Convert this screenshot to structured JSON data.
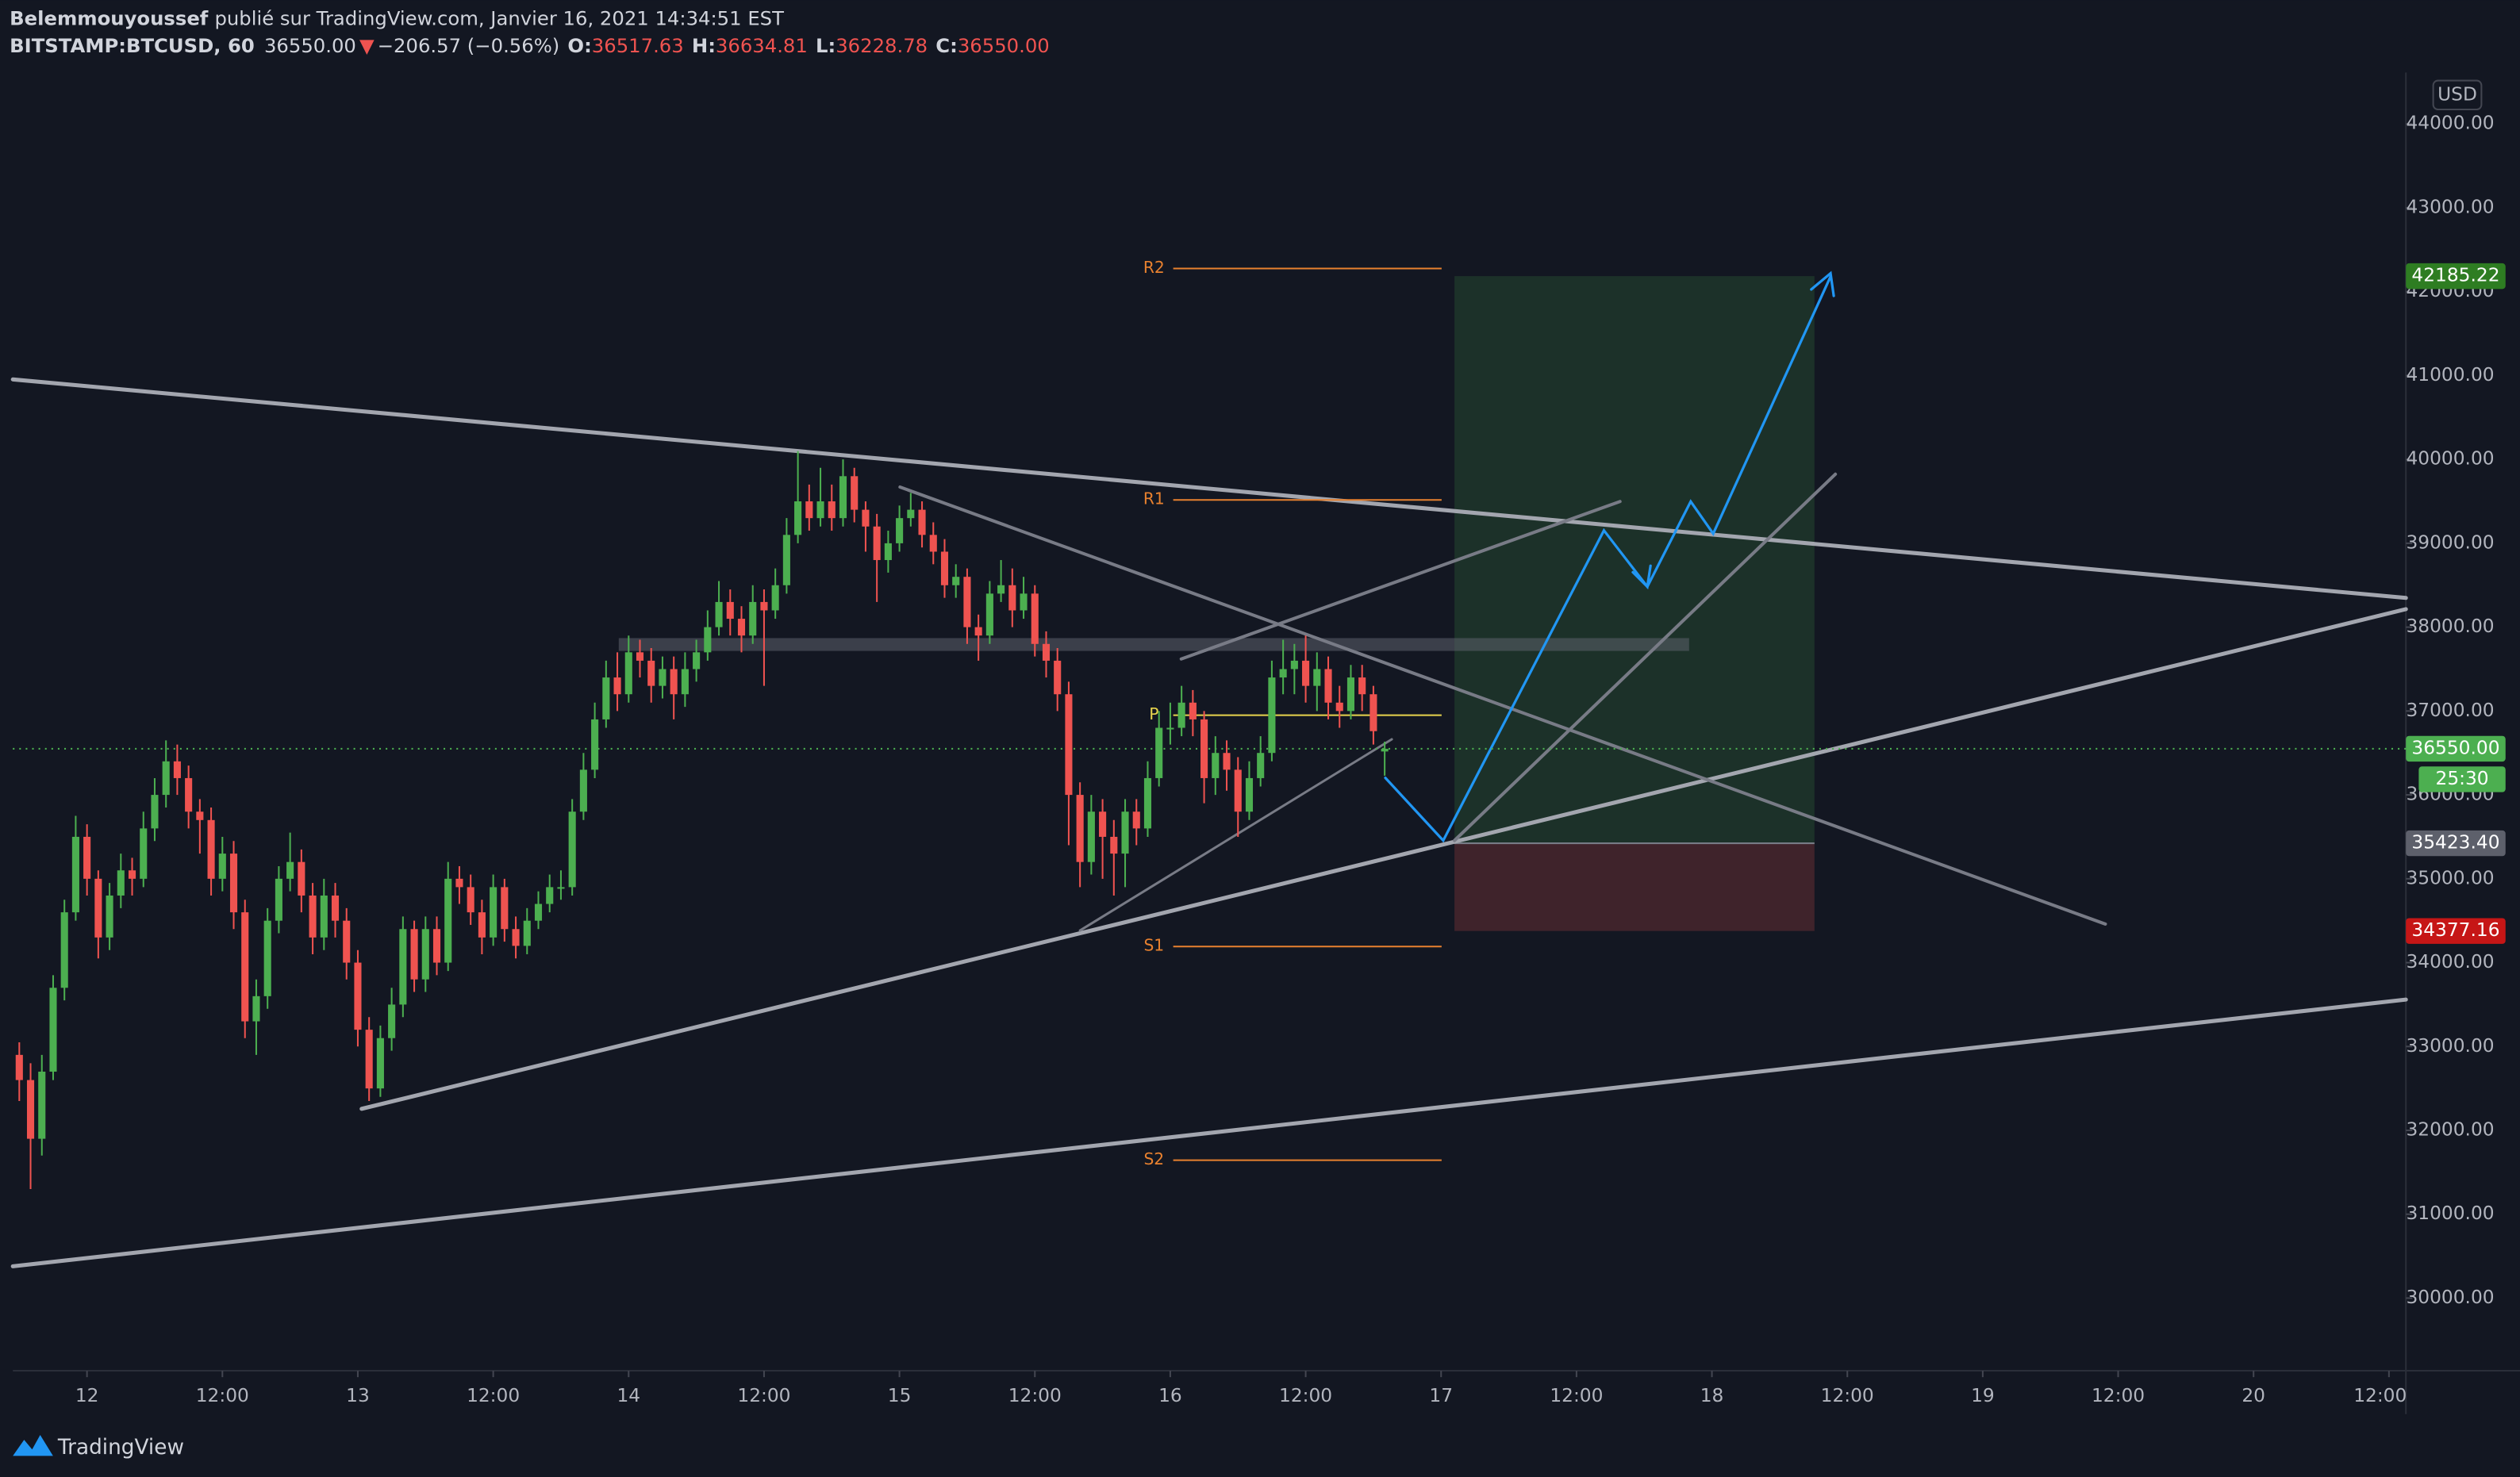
{
  "header": {
    "author": "Belemmouyoussef",
    "published": "publié sur TradingView.com, Janvier 16, 2021 14:34:51 EST",
    "symbol": "BITSTAMP:BTCUSD, 60",
    "price": "36550.00",
    "arrow": "▼",
    "change": "−206.57 (−0.56%)",
    "ohlc": [
      {
        "label": "O:",
        "value": "36517.63"
      },
      {
        "label": "H:",
        "value": "36634.81"
      },
      {
        "label": "L:",
        "value": "36228.78"
      },
      {
        "label": "C:",
        "value": "36550.00"
      }
    ]
  },
  "chart_data": {
    "type": "candlestick",
    "currency": "USD",
    "up_color": "#4caf50",
    "down_color": "#ef5350",
    "grid": false,
    "open": [
      32900,
      32600,
      31900,
      32700,
      33700,
      34600,
      35500,
      35000,
      34300,
      34800,
      35100,
      35000,
      35600,
      36000,
      36400,
      36200,
      35800,
      35700,
      35000,
      35300,
      34600,
      33300,
      33600,
      34500,
      35000,
      35200,
      34800,
      34300,
      34800,
      34500,
      34000,
      33200,
      32500,
      33100,
      33500,
      34400,
      33800,
      34400,
      34000,
      35000,
      34900,
      34600,
      34300,
      34900,
      34400,
      34200,
      34500,
      34700,
      34900,
      34900,
      35800,
      36300,
      36900,
      37400,
      37200,
      37700,
      37600,
      37300,
      37500,
      37200,
      37500,
      37700,
      38000,
      38300,
      38100,
      37900,
      38300,
      38200,
      38500,
      39100,
      39500,
      39300,
      39500,
      39300,
      39800,
      39400,
      39200,
      38800,
      39000,
      39300,
      39400,
      39100,
      38900,
      38500,
      38600,
      38000,
      37900,
      38400,
      38500,
      38200,
      38400,
      37800,
      37600,
      37200,
      36000,
      35200,
      35800,
      35500,
      35300,
      35800,
      35600,
      36200,
      36800,
      36800,
      37100,
      36900,
      36200,
      36500,
      36300,
      35800,
      36200,
      36500,
      37400,
      37500,
      37600,
      37300,
      37500,
      37100,
      37000,
      37400,
      37200,
      36517.63
    ],
    "high": [
      33050,
      32800,
      32900,
      33850,
      34750,
      35750,
      35650,
      35100,
      34950,
      35300,
      35250,
      35800,
      36200,
      36650,
      36600,
      36350,
      35950,
      35850,
      35500,
      35450,
      34750,
      33800,
      34650,
      35150,
      35550,
      35350,
      34950,
      35000,
      34950,
      34650,
      34150,
      33350,
      33250,
      33700,
      34550,
      34500,
      34550,
      34550,
      35200,
      35150,
      35050,
      34750,
      35050,
      35000,
      34550,
      34650,
      34850,
      35050,
      35100,
      35950,
      36500,
      37100,
      37600,
      37700,
      37900,
      37850,
      37750,
      37650,
      37650,
      37700,
      37850,
      38200,
      38550,
      38450,
      38250,
      38500,
      38450,
      38700,
      39300,
      40100,
      39700,
      39900,
      39700,
      40000,
      39900,
      39500,
      39350,
      39150,
      39450,
      39600,
      39500,
      39250,
      39050,
      38750,
      38700,
      38150,
      38550,
      38800,
      38700,
      38600,
      38500,
      37950,
      37750,
      37350,
      36150,
      36000,
      35950,
      35700,
      35950,
      35950,
      36400,
      37000,
      37100,
      37300,
      37250,
      37000,
      36700,
      36650,
      36450,
      36400,
      36700,
      37600,
      37850,
      37800,
      37900,
      37700,
      37650,
      37300,
      37550,
      37550,
      37300,
      36634.81
    ],
    "low": [
      32350,
      31300,
      31700,
      32600,
      33550,
      34500,
      34800,
      34050,
      34150,
      34650,
      34800,
      34900,
      35450,
      35850,
      36000,
      35600,
      35300,
      34800,
      34850,
      34400,
      33100,
      32900,
      33450,
      34350,
      34850,
      34600,
      34100,
      34150,
      34300,
      33800,
      33000,
      32350,
      32400,
      32950,
      33350,
      33650,
      33650,
      33850,
      33900,
      34700,
      34450,
      34100,
      34200,
      34250,
      34050,
      34100,
      34400,
      34600,
      34750,
      34800,
      35700,
      36200,
      36800,
      37000,
      37100,
      37400,
      37100,
      37150,
      36900,
      37050,
      37350,
      37600,
      37900,
      37900,
      37700,
      37800,
      37300,
      38100,
      38400,
      39000,
      39150,
      39200,
      39150,
      39200,
      39250,
      38900,
      38300,
      38650,
      38900,
      39200,
      38950,
      38750,
      38350,
      38350,
      37800,
      37600,
      37800,
      38300,
      38000,
      38100,
      37650,
      37400,
      37000,
      35400,
      34900,
      35050,
      35000,
      34800,
      34900,
      35400,
      35500,
      36100,
      36600,
      36700,
      36700,
      35900,
      36000,
      36050,
      35500,
      35700,
      36100,
      36400,
      37200,
      37200,
      37100,
      37000,
      36900,
      36800,
      36900,
      37000,
      36600,
      36228.78
    ],
    "close": [
      32600,
      31900,
      32700,
      33700,
      34600,
      35500,
      35000,
      34300,
      34800,
      35100,
      35000,
      35600,
      36000,
      36400,
      36200,
      35800,
      35700,
      35000,
      35300,
      34600,
      33300,
      33600,
      34500,
      35000,
      35200,
      34800,
      34300,
      34800,
      34500,
      34000,
      33200,
      32500,
      33100,
      33500,
      34400,
      33800,
      34400,
      34000,
      35000,
      34900,
      34600,
      34300,
      34900,
      34400,
      34200,
      34500,
      34700,
      34900,
      34900,
      35800,
      36300,
      36900,
      37400,
      37200,
      37700,
      37600,
      37300,
      37500,
      37200,
      37500,
      37700,
      38000,
      38300,
      38100,
      37900,
      38300,
      38200,
      38500,
      39100,
      39500,
      39300,
      39500,
      39300,
      39800,
      39400,
      39200,
      38800,
      39000,
      39300,
      39400,
      39100,
      38900,
      38500,
      38600,
      38000,
      37900,
      38400,
      38500,
      38200,
      38400,
      37800,
      37600,
      37200,
      36000,
      35200,
      35800,
      35500,
      35300,
      35800,
      35600,
      36200,
      36800,
      36800,
      37100,
      36900,
      36200,
      36500,
      36300,
      35800,
      36200,
      36500,
      37400,
      37500,
      37600,
      37300,
      37500,
      37100,
      37000,
      37400,
      37200,
      36760,
      36550
    ],
    "xlim": [
      -0.57,
      211.5
    ],
    "xticks": [
      {
        "value": 6,
        "label": "12"
      },
      {
        "value": 18,
        "label": "12:00"
      },
      {
        "value": 30,
        "label": "13"
      },
      {
        "value": 42,
        "label": "12:00"
      },
      {
        "value": 54,
        "label": "14"
      },
      {
        "value": 66,
        "label": "12:00"
      },
      {
        "value": 78,
        "label": "15"
      },
      {
        "value": 90,
        "label": "12:00"
      },
      {
        "value": 102,
        "label": "16"
      },
      {
        "value": 114,
        "label": "12:00"
      },
      {
        "value": 126,
        "label": "17"
      },
      {
        "value": 138,
        "label": "12:00"
      },
      {
        "value": 150,
        "label": "18"
      },
      {
        "value": 162,
        "label": "12:00"
      },
      {
        "value": 174,
        "label": "19"
      },
      {
        "value": 186,
        "label": "12:00"
      },
      {
        "value": 198,
        "label": "20"
      },
      {
        "value": 210,
        "label": "12:00"
      }
    ],
    "ylim": [
      29134,
      44613
    ],
    "yticks": [
      {
        "value": 30000,
        "label": "30000.00"
      },
      {
        "value": 31000,
        "label": "31000.00"
      },
      {
        "value": 32000,
        "label": "32000.00"
      },
      {
        "value": 33000,
        "label": "33000.00"
      },
      {
        "value": 34000,
        "label": "34000.00"
      },
      {
        "value": 35000,
        "label": "35000.00"
      },
      {
        "value": 36000,
        "label": "36000.00"
      },
      {
        "value": 37000,
        "label": "37000.00"
      },
      {
        "value": 38000,
        "label": "38000.00"
      },
      {
        "value": 39000,
        "label": "39000.00"
      },
      {
        "value": 40000,
        "label": "40000.00"
      },
      {
        "value": 41000,
        "label": "41000.00"
      },
      {
        "value": 42000,
        "label": "42000.00"
      },
      {
        "value": 43000,
        "label": "43000.00"
      },
      {
        "value": 44000,
        "label": "44000.00"
      }
    ],
    "last_price": {
      "value": 36550,
      "label": "36550.00",
      "color": "#4caf50"
    },
    "countdown": "25:30",
    "pivots": [
      {
        "label": "R2",
        "value": 42276,
        "color": "#e8812f"
      },
      {
        "label": "R1",
        "value": 39517,
        "color": "#e8812f"
      },
      {
        "label": "P",
        "value": 36950,
        "color": "#e8d44d"
      },
      {
        "label": "S1",
        "value": 34192,
        "color": "#e8812f"
      },
      {
        "label": "S2",
        "value": 31644,
        "color": "#e8812f"
      }
    ],
    "position": {
      "target": {
        "value": 42185.22,
        "label": "42185.22",
        "color": "#2e7d22"
      },
      "entry": {
        "value": 35423.4,
        "label": "35423.40",
        "color": "#5d606b"
      },
      "stop": {
        "value": 34377.16,
        "label": "34377.16",
        "color": "#c61616"
      }
    }
  },
  "footer": {
    "brand": "TradingView"
  }
}
